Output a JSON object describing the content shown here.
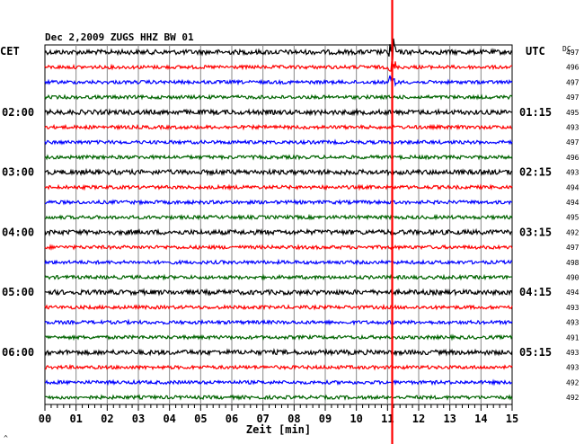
{
  "header": {
    "title": "Dec 2,2009   ZUGS HHZ BW 01",
    "left_tz": "CET",
    "right_tz": "UTC",
    "dc_label": "DC",
    "corner_mark": "^"
  },
  "chart_data": {
    "type": "line",
    "title": "Dec 2,2009   ZUGS HHZ BW 01",
    "xlabel": "Zeit [min]",
    "ylabel": "",
    "xlim": [
      0,
      15
    ],
    "x_ticks": [
      "00",
      "01",
      "02",
      "03",
      "04",
      "05",
      "06",
      "07",
      "08",
      "09",
      "10",
      "11",
      "12",
      "13",
      "14",
      "15"
    ],
    "minor_ticks_per_minute": 5,
    "rows_count": 24,
    "row_colors": [
      "#000000",
      "#ff0000",
      "#0000ff",
      "#006400"
    ],
    "cet_labels": [
      {
        "row": 4,
        "label": "02:00"
      },
      {
        "row": 8,
        "label": "03:00"
      },
      {
        "row": 12,
        "label": "04:00"
      },
      {
        "row": 16,
        "label": "05:00"
      },
      {
        "row": 20,
        "label": "06:00"
      }
    ],
    "utc_labels": [
      {
        "row": 4,
        "label": "01:15"
      },
      {
        "row": 8,
        "label": "02:15"
      },
      {
        "row": 12,
        "label": "03:15"
      },
      {
        "row": 16,
        "label": "04:15"
      },
      {
        "row": 20,
        "label": "05:15"
      }
    ],
    "dc_values": [
      "497",
      "496",
      "497",
      "497",
      "495",
      "493",
      "497",
      "496",
      "493",
      "494",
      "494",
      "495",
      "492",
      "497",
      "498",
      "490",
      "494",
      "493",
      "493",
      "491",
      "493",
      "493",
      "492",
      "492"
    ],
    "event": {
      "minute": 11.15,
      "color": "#ff0000",
      "rows_with_spike": [
        0,
        1,
        2
      ]
    },
    "grid": true
  }
}
